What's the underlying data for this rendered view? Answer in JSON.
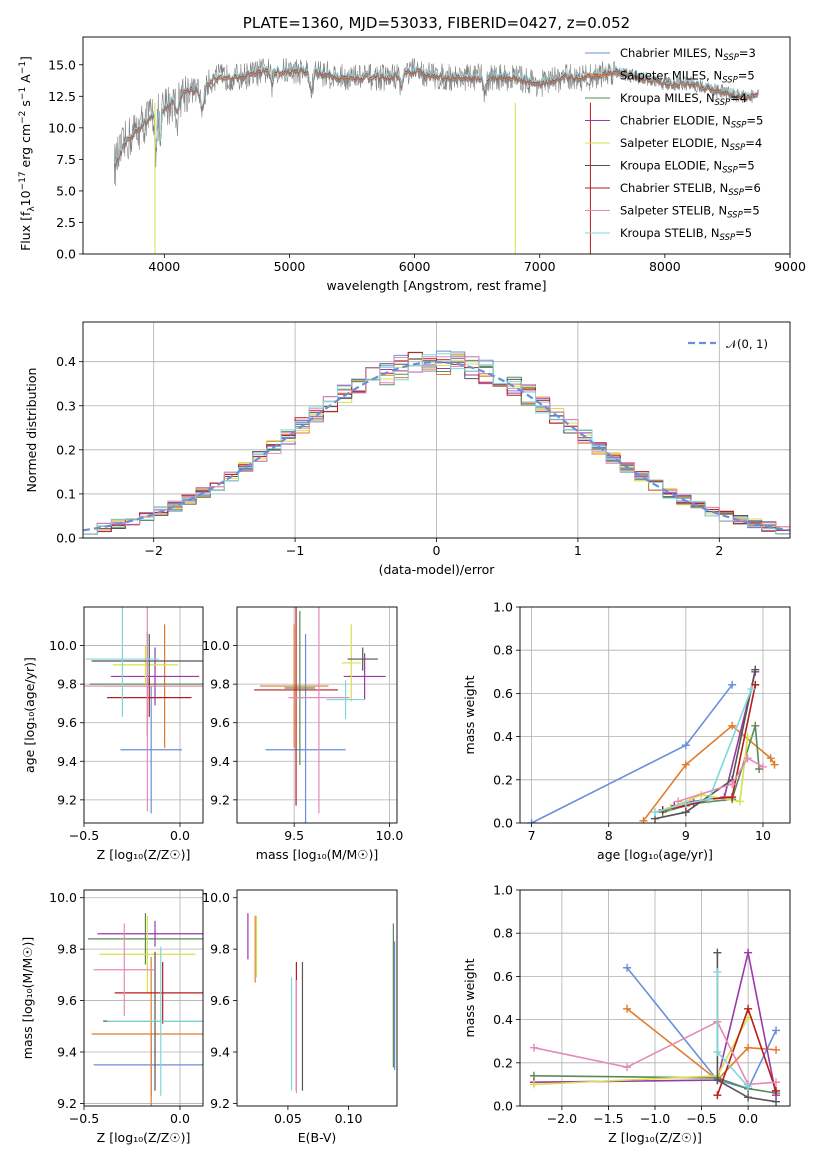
{
  "colors": [
    "#6a8fd8",
    "#e07b2c",
    "#5a8a5a",
    "#9a3aa8",
    "#d8e04a",
    "#555555",
    "#b81d1d",
    "#e58ab8",
    "#7fd8d8"
  ],
  "chart_data": [
    {
      "id": "spectrum",
      "type": "line",
      "title": "PLATE=1360, MJD=53033, FIBERID=0427, z=0.052",
      "xlabel": "wavelength [Angstrom, rest frame]",
      "ylabel": "Flux [f$_\\lambda$10$^{-17}$ erg cm$^{-2}$ s$^{-1}$ A$^{-1}$]",
      "ylabel_parts": {
        "a": "Flux [f",
        "b": "λ",
        "c": "10",
        "d": "−17",
        "e": " erg cm",
        "f": "−2",
        "g": " s",
        "h": "−1",
        "i": " A",
        "j": "−1",
        "k": "]"
      },
      "xlim": [
        3350,
        9000
      ],
      "ylim": [
        0,
        17.2
      ],
      "xticks": [
        4000,
        5000,
        6000,
        7000,
        8000,
        9000
      ],
      "yticks": [
        0.0,
        2.5,
        5.0,
        7.5,
        10.0,
        12.5,
        15.0
      ],
      "xticklabels": [
        "4000",
        "5000",
        "6000",
        "7000",
        "8000",
        "9000"
      ],
      "yticklabels": [
        "0.0",
        "2.5",
        "5.0",
        "7.5",
        "10.0",
        "12.5",
        "15.0"
      ],
      "data_color": "#808080",
      "model_color": "#7fd8d8",
      "anchors_x": [
        3600,
        3700,
        3800,
        3900,
        4000,
        4100,
        4200,
        4300,
        4400,
        4600,
        4800,
        5000,
        5200,
        5400,
        5600,
        5800,
        6000,
        6200,
        6400,
        6600,
        6800,
        7000,
        7200,
        7400,
        7600,
        7800,
        8000,
        8200,
        8400,
        8600,
        8750
      ],
      "anchors_y": [
        7.0,
        9.0,
        10.0,
        11.0,
        11.5,
        12.5,
        13.0,
        13.0,
        14.0,
        14.0,
        14.5,
        14.5,
        14.5,
        14.0,
        14.0,
        14.0,
        14.5,
        14.0,
        14.0,
        14.0,
        14.0,
        13.5,
        14.0,
        14.0,
        14.5,
        14.0,
        13.5,
        13.5,
        13.0,
        12.5,
        12.5
      ],
      "legend": [
        {
          "base": "Chabrier MILES, N",
          "sub": "SSP",
          "tail": "=3"
        },
        {
          "base": "Salpeter MILES, N",
          "sub": "SSP",
          "tail": "=5"
        },
        {
          "base": "Kroupa MILES, N",
          "sub": "SSP",
          "tail": "=4"
        },
        {
          "base": "Chabrier ELODIE, N",
          "sub": "SSP",
          "tail": "=5"
        },
        {
          "base": "Salpeter ELODIE, N",
          "sub": "SSP",
          "tail": "=4"
        },
        {
          "base": "Kroupa ELODIE, N",
          "sub": "SSP",
          "tail": "=5"
        },
        {
          "base": "Chabrier STELIB, N",
          "sub": "SSP",
          "tail": "=6"
        },
        {
          "base": "Salpeter STELIB, N",
          "sub": "SSP",
          "tail": "=5"
        },
        {
          "base": "Kroupa STELIB, N",
          "sub": "SSP",
          "tail": "=5"
        }
      ],
      "legend_placement": "right"
    },
    {
      "id": "residuals",
      "type": "histogram",
      "xlabel": "(data-model)/error",
      "ylabel": "Normed distribution",
      "xlim": [
        -2.5,
        2.5
      ],
      "ylim": [
        0,
        0.49
      ],
      "xticks": [
        -2,
        -1,
        0,
        1,
        2
      ],
      "yticks": [
        0.0,
        0.1,
        0.2,
        0.3,
        0.4
      ],
      "xticklabels": [
        "−2",
        "−1",
        "0",
        "1",
        "2"
      ],
      "yticklabels": [
        "0.0",
        "0.1",
        "0.2",
        "0.3",
        "0.4"
      ],
      "grid": true,
      "bins": 50,
      "legend": {
        "label": "𝒩(0, 1)",
        "placement": "top-right"
      }
    },
    {
      "id": "age_vs_Z",
      "type": "errorbar",
      "xlabel": "Z [log₁₀(Z/Z☉)]",
      "ylabel": "age  [log₁₀(age/yr)]",
      "xlim": [
        -0.5,
        0.12
      ],
      "ylim": [
        9.08,
        10.2
      ],
      "xticks": [
        -0.5,
        0.0
      ],
      "yticks": [
        9.2,
        9.4,
        9.6,
        9.8,
        10.0
      ],
      "xticklabels": [
        "−0.5",
        "0.0"
      ],
      "yticklabels": [
        "9.2",
        "9.4",
        "9.6",
        "9.8",
        "10.0"
      ],
      "grid": true,
      "points": [
        {
          "x": -0.15,
          "xerr": 0.16,
          "y": 9.46,
          "yerr": 0.33
        },
        {
          "x": -0.08,
          "xerr": 0.32,
          "y": 9.79,
          "yerr": 0.32
        },
        {
          "x": -0.17,
          "xerr": 0.3,
          "y": 9.8,
          "yerr": 0.27
        },
        {
          "x": -0.13,
          "xerr": 0.23,
          "y": 9.84,
          "yerr": 0.15
        },
        {
          "x": -0.18,
          "xerr": 0.17,
          "y": 9.9,
          "yerr": 0.1
        },
        {
          "x": -0.16,
          "xerr": 0.3,
          "y": 9.92,
          "yerr": 0.14
        },
        {
          "x": -0.16,
          "xerr": 0.22,
          "y": 9.73,
          "yerr": 0.1
        },
        {
          "x": -0.17,
          "xerr": 0.33,
          "y": 9.79,
          "yerr": 0.65
        },
        {
          "x": -0.3,
          "xerr": 0.19,
          "y": 9.93,
          "yerr": 0.3
        }
      ]
    },
    {
      "id": "age_vs_mass",
      "type": "errorbar",
      "xlabel": "mass [log₁₀(M/M☉)]",
      "xlim": [
        9.2,
        10.04
      ],
      "ylim": [
        9.08,
        10.2
      ],
      "xticks": [
        9.5,
        10.0
      ],
      "yticks": [
        9.2,
        9.4,
        9.6,
        9.8,
        10.0
      ],
      "xticklabels": [
        "9.5",
        "10.0"
      ],
      "yticklabels": [
        "9.2",
        "9.4",
        "9.6",
        "9.8",
        "10.0"
      ],
      "grid": true,
      "points": [
        {
          "x": 9.56,
          "xerr": 0.21,
          "y": 9.46,
          "yerr": 0.6
        },
        {
          "x": 9.5,
          "xerr": 0.18,
          "y": 9.79,
          "yerr": 0.32
        },
        {
          "x": 9.53,
          "xerr": 0.08,
          "y": 9.78,
          "yerr": 0.4
        },
        {
          "x": 9.87,
          "xerr": 0.11,
          "y": 9.84,
          "yerr": 0.12
        },
        {
          "x": 9.8,
          "xerr": 0.05,
          "y": 9.91,
          "yerr": 0.2
        },
        {
          "x": 9.86,
          "xerr": 0.08,
          "y": 9.93,
          "yerr": 0.06
        },
        {
          "x": 9.51,
          "xerr": 0.22,
          "y": 9.77,
          "yerr": 0.6
        },
        {
          "x": 9.63,
          "xerr": 0.16,
          "y": 9.73,
          "yerr": 0.6
        },
        {
          "x": 9.77,
          "xerr": 0.1,
          "y": 9.72,
          "yerr": 0.1
        }
      ]
    },
    {
      "id": "weight_vs_age",
      "type": "line",
      "xlabel": "age  [log₁₀(age/yr)]",
      "ylabel": "mass weight",
      "xlim": [
        6.85,
        10.35
      ],
      "ylim": [
        0,
        1.0
      ],
      "xticks": [
        7,
        8,
        9,
        10
      ],
      "yticks": [
        0.0,
        0.2,
        0.4,
        0.6,
        0.8,
        1.0
      ],
      "xticklabels": [
        "7",
        "8",
        "9",
        "10"
      ],
      "yticklabels": [
        "0.0",
        "0.2",
        "0.4",
        "0.6",
        "0.8",
        "1.0"
      ],
      "grid": true,
      "series": [
        {
          "x": [
            7.0,
            9.0,
            9.6
          ],
          "y": [
            0.0,
            0.36,
            0.64
          ]
        },
        {
          "x": [
            8.45,
            9.0,
            9.6,
            10.1,
            10.15
          ],
          "y": [
            0.01,
            0.27,
            0.45,
            0.3,
            0.27
          ]
        },
        {
          "x": [
            8.7,
            9.1,
            9.6,
            9.9,
            9.95
          ],
          "y": [
            0.05,
            0.09,
            0.11,
            0.45,
            0.25
          ]
        },
        {
          "x": [
            8.85,
            9.1,
            9.5,
            9.9
          ],
          "y": [
            0.08,
            0.1,
            0.12,
            0.7
          ]
        },
        {
          "x": [
            8.8,
            9.2,
            9.7,
            9.8
          ],
          "y": [
            0.07,
            0.13,
            0.1,
            0.4
          ]
        },
        {
          "x": [
            8.6,
            9.0,
            9.6,
            9.9
          ],
          "y": [
            0.02,
            0.05,
            0.2,
            0.71
          ]
        },
        {
          "x": [
            8.7,
            9.0,
            9.3,
            9.6,
            9.9
          ],
          "y": [
            0.06,
            0.08,
            0.11,
            0.12,
            0.64
          ]
        },
        {
          "x": [
            8.9,
            9.6,
            9.8,
            10.0
          ],
          "y": [
            0.1,
            0.18,
            0.3,
            0.26
          ]
        },
        {
          "x": [
            8.6,
            9.0,
            9.3,
            9.85
          ],
          "y": [
            0.05,
            0.09,
            0.11,
            0.62
          ]
        }
      ]
    },
    {
      "id": "mass_vs_Z",
      "type": "errorbar",
      "xlabel": "Z [log₁₀(Z/Z☉)]",
      "ylabel": "mass [log₁₀(M/M☉)]",
      "xlim": [
        -0.5,
        0.12
      ],
      "ylim": [
        9.19,
        10.03
      ],
      "xticks": [
        -0.5,
        0.0
      ],
      "yticks": [
        9.2,
        9.4,
        9.6,
        9.8,
        10.0
      ],
      "xticklabels": [
        "−0.5",
        "0.0"
      ],
      "yticklabels": [
        "9.2",
        "9.4",
        "9.6",
        "9.8",
        "10.0"
      ],
      "grid": true,
      "points": [
        {
          "x": -0.15,
          "xerr": 0.3,
          "y": 9.35,
          "yerr": 0.12
        },
        {
          "x": -0.15,
          "xerr": 0.31,
          "y": 9.47,
          "yerr": 0.3
        },
        {
          "x": -0.18,
          "xerr": 0.3,
          "y": 9.84,
          "yerr": 0.1
        },
        {
          "x": -0.13,
          "xerr": 0.3,
          "y": 9.86,
          "yerr": 0.05
        },
        {
          "x": -0.17,
          "xerr": 0.25,
          "y": 9.78,
          "yerr": 0.15
        },
        {
          "x": -0.13,
          "xerr": 0.27,
          "y": 9.52,
          "yerr": 0.27
        },
        {
          "x": -0.09,
          "xerr": 0.25,
          "y": 9.63,
          "yerr": 0.12
        },
        {
          "x": -0.29,
          "xerr": 0.16,
          "y": 9.72,
          "yerr": 0.18
        },
        {
          "x": -0.1,
          "xerr": 0.28,
          "y": 9.52,
          "yerr": 0.29
        }
      ]
    },
    {
      "id": "mass_vs_EBV",
      "type": "errorbar",
      "xlabel": "E(B-V)",
      "xlim": [
        0.008,
        0.14
      ],
      "ylim": [
        9.19,
        10.03
      ],
      "xticks": [
        0.05,
        0.1
      ],
      "yticks": [
        9.2,
        9.4,
        9.6,
        9.8,
        10.0
      ],
      "xticklabels": [
        "0.05",
        "0.10"
      ],
      "yticklabels": [
        "9.2",
        "9.4",
        "9.6",
        "9.8",
        "10.0"
      ],
      "grid": false,
      "points": [
        {
          "x": 0.138,
          "xerr": 0,
          "y": 9.58,
          "yerr": 0.25
        },
        {
          "x": 0.023,
          "xerr": 0,
          "y": 9.8,
          "yerr": 0.13
        },
        {
          "x": 0.137,
          "xerr": 0,
          "y": 9.62,
          "yerr": 0.28
        },
        {
          "x": 0.017,
          "xerr": 0,
          "y": 9.85,
          "yerr": 0.09
        },
        {
          "x": 0.024,
          "xerr": 0,
          "y": 9.81,
          "yerr": 0.12
        },
        {
          "x": 0.062,
          "xerr": 0,
          "y": 9.5,
          "yerr": 0.25
        },
        {
          "x": 0.057,
          "xerr": 0,
          "y": 9.5,
          "yerr": 0.25
        },
        {
          "x": 0.057,
          "xerr": 0,
          "y": 9.46,
          "yerr": 0.22
        },
        {
          "x": 0.053,
          "xerr": 0,
          "y": 9.47,
          "yerr": 0.22
        }
      ]
    },
    {
      "id": "weight_vs_Z",
      "type": "line",
      "xlabel": "Z [log₁₀(Z/Z☉)]",
      "ylabel": "mass weight",
      "xlim": [
        -2.45,
        0.45
      ],
      "ylim": [
        0,
        1.0
      ],
      "xticks": [
        -2.0,
        -1.5,
        -1.0,
        -0.5,
        0.0
      ],
      "yticks": [
        0.0,
        0.2,
        0.4,
        0.6,
        0.8,
        1.0
      ],
      "xticklabels": [
        "−2.0",
        "−1.5",
        "−1.0",
        "−0.5",
        "0.0"
      ],
      "yticklabels": [
        "0.0",
        "0.2",
        "0.4",
        "0.6",
        "0.8",
        "1.0"
      ],
      "grid": true,
      "series": [
        {
          "x": [
            -1.3,
            -0.33,
            0.0,
            0.3
          ],
          "y": [
            0.64,
            0.12,
            0.08,
            0.35
          ]
        },
        {
          "x": [
            -1.3,
            -0.33,
            0.0,
            0.3
          ],
          "y": [
            0.45,
            0.12,
            0.27,
            0.26
          ]
        },
        {
          "x": [
            -2.3,
            -0.33,
            0.0,
            0.3
          ],
          "y": [
            0.14,
            0.13,
            0.08,
            0.06
          ]
        },
        {
          "x": [
            -2.3,
            -0.33,
            0.0,
            0.3
          ],
          "y": [
            0.11,
            0.12,
            0.71,
            0.05
          ]
        },
        {
          "x": [
            -2.3,
            -0.33,
            0.0
          ],
          "y": [
            0.1,
            0.14,
            0.41
          ]
        },
        {
          "x": [
            -0.33,
            -0.33,
            0.0,
            0.3
          ],
          "y": [
            0.71,
            0.12,
            0.04,
            0.02
          ]
        },
        {
          "x": [
            -0.33,
            0.0,
            0.3
          ],
          "y": [
            0.05,
            0.45,
            0.07
          ]
        },
        {
          "x": [
            -2.3,
            -1.3,
            -0.33,
            0.0,
            0.3
          ],
          "y": [
            0.27,
            0.18,
            0.39,
            0.1,
            0.11
          ]
        },
        {
          "x": [
            -0.33,
            -0.33,
            0.0
          ],
          "y": [
            0.62,
            0.25,
            0.09
          ]
        }
      ]
    }
  ]
}
